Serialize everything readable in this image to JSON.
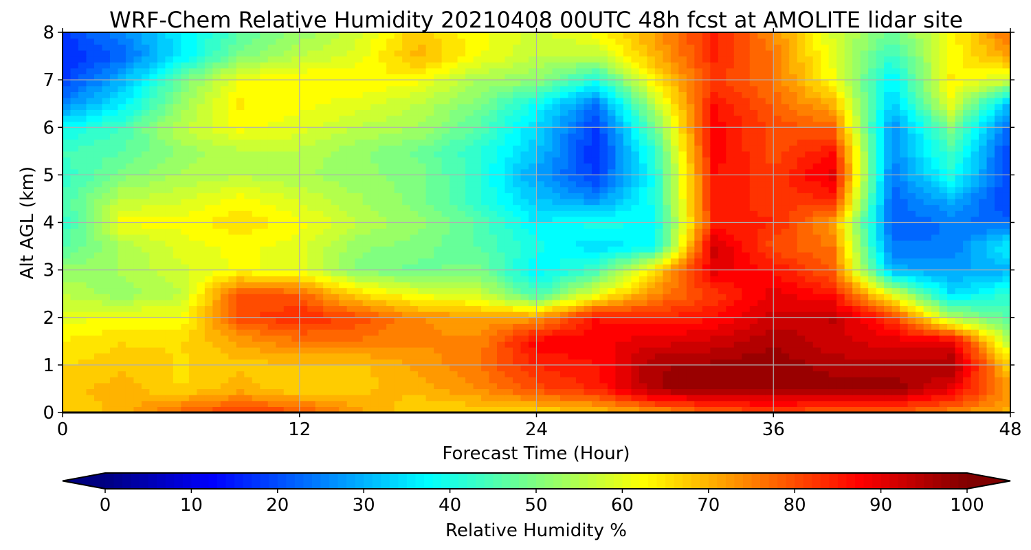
{
  "chart_data": {
    "type": "heatmap",
    "title": "WRF-Chem Relative Humidity 20210408 00UTC 48h fcst at AMOLITE lidar site",
    "xlabel": "Forecast Time (Hour)",
    "ylabel": "Alt AGL (km)",
    "xlim": [
      0,
      48
    ],
    "ylim": [
      0,
      8
    ],
    "x_ticks": [
      0,
      12,
      24,
      36,
      48
    ],
    "y_ticks": [
      0,
      1,
      2,
      3,
      4,
      5,
      6,
      7,
      8
    ],
    "grid": true,
    "colormap": "jet",
    "colorbar": {
      "label": "Relative Humidity %",
      "range": [
        0,
        100
      ],
      "ticks": [
        0,
        10,
        20,
        30,
        40,
        50,
        60,
        70,
        80,
        90,
        100
      ],
      "extend": "both",
      "orientation": "horizontal",
      "placement": "bottom"
    },
    "x": [
      0,
      3,
      6,
      9,
      12,
      15,
      18,
      21,
      24,
      27,
      30,
      33,
      36,
      39,
      42,
      45,
      48
    ],
    "y": [
      0,
      0.5,
      1,
      1.5,
      2,
      2.5,
      3,
      3.5,
      4,
      4.5,
      5,
      5.5,
      6,
      6.5,
      7,
      7.5,
      8
    ],
    "z": [
      [
        66,
        70,
        78,
        82,
        80,
        72,
        66,
        66,
        66,
        68,
        72,
        78,
        80,
        78,
        78,
        74,
        70
      ],
      [
        68,
        70,
        66,
        70,
        66,
        68,
        70,
        74,
        80,
        84,
        96,
        98,
        98,
        98,
        98,
        90,
        72
      ],
      [
        66,
        68,
        66,
        68,
        68,
        68,
        72,
        76,
        84,
        86,
        96,
        97,
        98,
        95,
        95,
        96,
        66
      ],
      [
        64,
        66,
        66,
        72,
        76,
        76,
        74,
        74,
        88,
        88,
        90,
        92,
        96,
        92,
        90,
        90,
        55
      ],
      [
        60,
        62,
        62,
        80,
        84,
        80,
        74,
        72,
        72,
        86,
        84,
        86,
        92,
        94,
        82,
        55,
        46
      ],
      [
        56,
        52,
        56,
        80,
        78,
        66,
        60,
        58,
        44,
        60,
        74,
        82,
        90,
        86,
        60,
        34,
        42
      ],
      [
        52,
        54,
        58,
        62,
        60,
        50,
        48,
        50,
        36,
        44,
        66,
        90,
        86,
        78,
        30,
        28,
        30
      ],
      [
        46,
        54,
        60,
        62,
        60,
        52,
        50,
        46,
        40,
        34,
        38,
        92,
        80,
        76,
        24,
        24,
        38
      ],
      [
        42,
        62,
        62,
        66,
        62,
        56,
        52,
        46,
        36,
        40,
        38,
        84,
        84,
        72,
        22,
        24,
        22
      ],
      [
        44,
        56,
        58,
        62,
        58,
        54,
        50,
        42,
        32,
        26,
        40,
        86,
        82,
        84,
        22,
        30,
        18
      ],
      [
        42,
        50,
        54,
        56,
        54,
        52,
        50,
        42,
        28,
        18,
        40,
        86,
        82,
        90,
        24,
        40,
        18
      ],
      [
        44,
        46,
        52,
        56,
        56,
        52,
        48,
        42,
        32,
        16,
        42,
        88,
        80,
        86,
        26,
        44,
        18
      ],
      [
        38,
        44,
        56,
        62,
        60,
        56,
        54,
        46,
        34,
        18,
        48,
        88,
        80,
        78,
        26,
        50,
        22
      ],
      [
        26,
        36,
        52,
        64,
        62,
        60,
        56,
        50,
        38,
        24,
        56,
        86,
        78,
        70,
        32,
        60,
        30
      ],
      [
        18,
        30,
        48,
        62,
        64,
        64,
        62,
        54,
        52,
        40,
        64,
        82,
        76,
        62,
        36,
        64,
        58
      ],
      [
        16,
        22,
        36,
        50,
        56,
        60,
        70,
        62,
        56,
        56,
        70,
        84,
        76,
        60,
        42,
        62,
        72
      ],
      [
        18,
        26,
        36,
        46,
        52,
        58,
        68,
        62,
        58,
        62,
        72,
        84,
        74,
        58,
        48,
        62,
        78
      ]
    ]
  }
}
